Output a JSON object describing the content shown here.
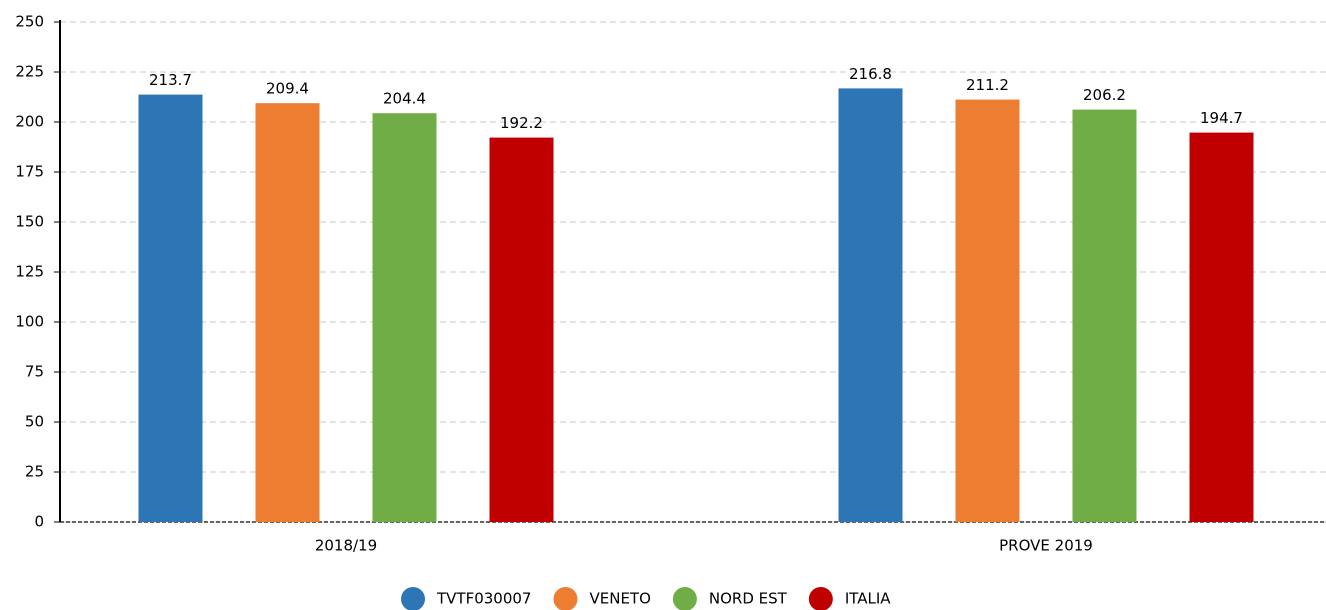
{
  "chart_data": {
    "type": "bar",
    "categories": [
      "2018/19",
      "PROVE 2019"
    ],
    "series": [
      {
        "name": "TVTF030007",
        "color": "#2e75b6",
        "values": [
          213.7,
          216.8
        ]
      },
      {
        "name": "VENETO",
        "color": "#ed7d31",
        "values": [
          209.4,
          211.2
        ]
      },
      {
        "name": "NORD EST",
        "color": "#70ad47",
        "values": [
          204.4,
          206.2
        ]
      },
      {
        "name": "ITALIA",
        "color": "#c00000",
        "values": [
          192.2,
          194.7
        ]
      }
    ],
    "ylim": [
      0,
      250
    ],
    "yticks": [
      0,
      25,
      50,
      75,
      100,
      125,
      150,
      175,
      200,
      225,
      250
    ],
    "grid": true,
    "legend": "bottom"
  }
}
